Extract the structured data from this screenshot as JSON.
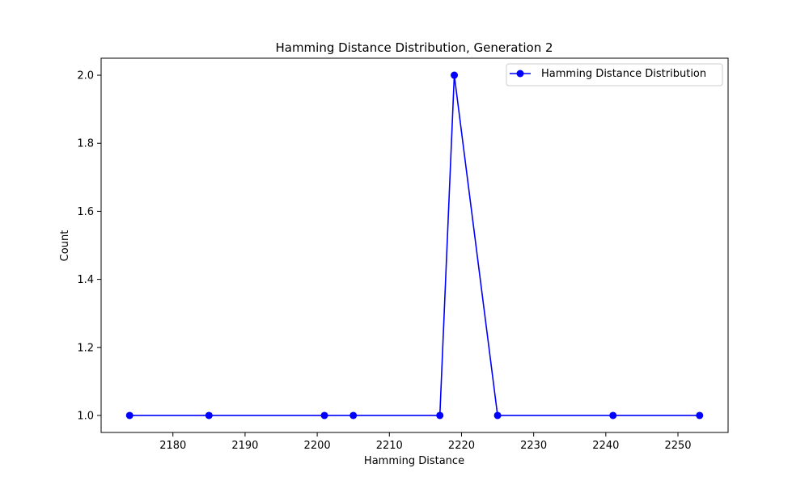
{
  "chart_data": {
    "type": "line",
    "title": "Hamming Distance Distribution, Generation 2",
    "xlabel": "Hamming Distance",
    "ylabel": "Count",
    "xlim": [
      2170.05,
      2256.95
    ],
    "ylim": [
      0.95,
      2.05
    ],
    "xticks": [
      2180,
      2190,
      2200,
      2210,
      2220,
      2230,
      2240,
      2250
    ],
    "yticks": [
      1.0,
      1.2,
      1.4,
      1.6,
      1.8,
      2.0
    ],
    "grid": false,
    "legend_position": "top-right",
    "series": [
      {
        "name": "Hamming Distance Distribution",
        "color": "#0000ff",
        "marker": "circle",
        "x": [
          2174,
          2185,
          2201,
          2205,
          2217,
          2219,
          2225,
          2241,
          2253
        ],
        "y": [
          1,
          1,
          1,
          1,
          1,
          2,
          1,
          1,
          1
        ]
      }
    ]
  }
}
